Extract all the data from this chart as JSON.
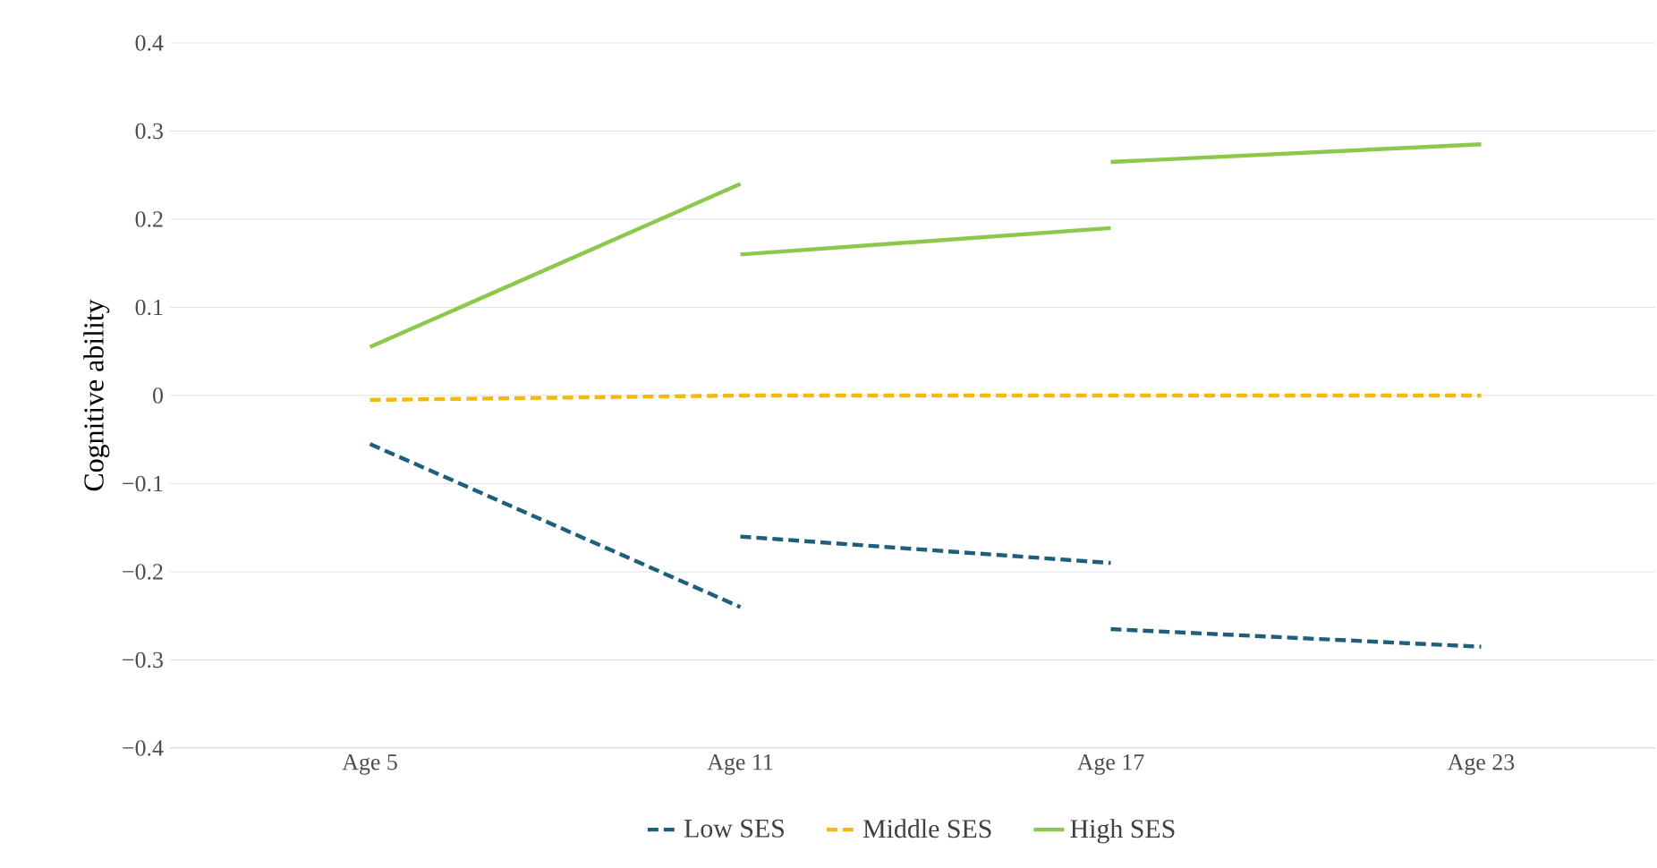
{
  "chart_data": {
    "type": "line",
    "ylabel": "Cognitive ability",
    "categories": [
      "Age 5",
      "Age 11",
      "Age 17",
      "Age 23"
    ],
    "ylim": [
      -0.4,
      0.4
    ],
    "yticks": [
      {
        "value": -0.4,
        "label": "−0.4"
      },
      {
        "value": -0.3,
        "label": "−0.3"
      },
      {
        "value": -0.2,
        "label": "−0.2"
      },
      {
        "value": -0.1,
        "label": "−0.1"
      },
      0,
      0.1,
      0.2,
      0.3,
      0.4
    ],
    "grid": "y",
    "legend": "bottom",
    "series": [
      {
        "name": "Low SES",
        "color": "#1f5f7a",
        "line_style": "dashed",
        "values": [
          -0.055,
          -0.24,
          null,
          null
        ]
      },
      {
        "color": "#1f5f7a",
        "line_style": "dashed",
        "values": [
          null,
          -0.16,
          -0.19,
          null
        ]
      },
      {
        "color": "#1f5f7a",
        "line_style": "dashed",
        "values": [
          null,
          null,
          -0.265,
          -0.285
        ]
      },
      {
        "name": "Middle SES",
        "color": "#f2b90f",
        "line_style": "dashed",
        "values": [
          -0.005,
          0,
          0,
          0
        ]
      },
      {
        "name": "High SES",
        "color": "#8cc84b",
        "line_style": "solid",
        "values": [
          0.055,
          0.24,
          null,
          null
        ]
      },
      {
        "color": "#8cc84b",
        "line_style": "solid",
        "values": [
          null,
          0.16,
          0.19,
          null
        ]
      },
      {
        "color": "#8cc84b",
        "line_style": "solid",
        "values": [
          null,
          null,
          0.265,
          0.285
        ]
      }
    ]
  }
}
